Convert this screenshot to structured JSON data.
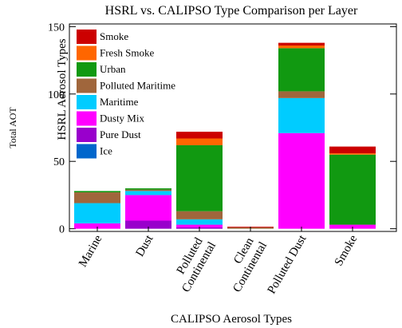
{
  "chart_data": {
    "type": "stacked-bar",
    "title": "HSRL vs. CALIPSO Type Comparison per Layer",
    "x_label": "CALIPSO Aerosol Types",
    "y_label": "Total AOT",
    "legend_title": "HSRL Aerosol Types",
    "legend_position": "upper left",
    "categories": [
      "Marine",
      "Dust",
      "Polluted Continental",
      "Clean Continental",
      "Polluted Dust",
      "Smoke"
    ],
    "series": [
      {
        "name": "Ice",
        "color": "#0066cc",
        "values": [
          0,
          0,
          0,
          0,
          0,
          0
        ]
      },
      {
        "name": "Pure Dust",
        "color": "#9900cc",
        "values": [
          0,
          6,
          1,
          0,
          0,
          0
        ]
      },
      {
        "name": "Dusty Mix",
        "color": "#ff00ff",
        "values": [
          4,
          19,
          2,
          0,
          71,
          3
        ]
      },
      {
        "name": "Maritime",
        "color": "#00ccff",
        "values": [
          15,
          3,
          4,
          0,
          26,
          0
        ]
      },
      {
        "name": "Polluted Maritime",
        "color": "#a0663c",
        "values": [
          8,
          1,
          6,
          1,
          5,
          0
        ]
      },
      {
        "name": "Urban",
        "color": "#119911",
        "values": [
          1,
          1,
          49,
          0,
          32,
          52
        ]
      },
      {
        "name": "Fresh Smoke",
        "color": "#ff6600",
        "values": [
          0,
          0,
          5,
          0,
          2,
          1
        ]
      },
      {
        "name": "Smoke",
        "color": "#cc0000",
        "values": [
          0,
          0,
          5,
          0.5,
          2,
          5
        ]
      }
    ],
    "ylim": [
      -2,
      152
    ],
    "yticks": [
      0,
      50,
      100,
      150
    ]
  }
}
